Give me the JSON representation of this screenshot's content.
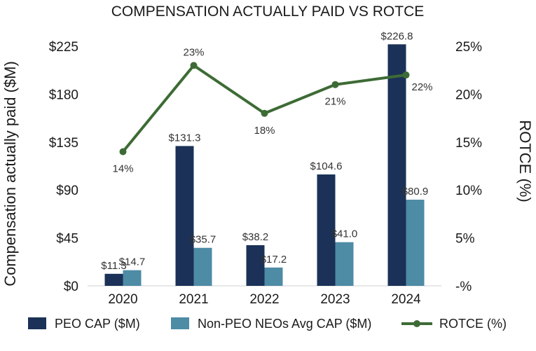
{
  "chart_data": {
    "type": "bar",
    "title": "COMPENSATION ACTUALLY PAID VS ROTCE",
    "categories": [
      "2020",
      "2021",
      "2022",
      "2023",
      "2024"
    ],
    "ylabel": "Compensation actually paid ($M)",
    "y2label": "ROTCE (%)",
    "ylim": [
      0,
      225
    ],
    "yticks": [
      0,
      45,
      90,
      135,
      180,
      225
    ],
    "ytick_labels": [
      "$0",
      "$45",
      "$90",
      "$135",
      "$180",
      "$225"
    ],
    "y2lim": [
      0,
      25
    ],
    "y2ticks": [
      0,
      5,
      10,
      15,
      20,
      25
    ],
    "y2tick_labels": [
      "-%",
      "5%",
      "10%",
      "15%",
      "20%",
      "25%"
    ],
    "series": [
      {
        "name": "PEO CAP ($M)",
        "kind": "bar",
        "color": "#1b3157",
        "values": [
          11.3,
          131.3,
          38.2,
          104.6,
          226.8
        ],
        "labels": [
          "$11.3",
          "$131.3",
          "$38.2",
          "$104.6",
          "$226.8"
        ]
      },
      {
        "name": "Non-PEO NEOs Avg CAP ($M)",
        "kind": "bar",
        "color": "#4e8ba5",
        "values": [
          14.7,
          35.7,
          17.2,
          41.0,
          80.9
        ],
        "labels": [
          "$14.7",
          "$35.7",
          "$17.2",
          "$41.0",
          "$80.9"
        ]
      },
      {
        "name": "ROTCE (%)",
        "kind": "line",
        "axis": "right",
        "color": "#3d6b35",
        "values": [
          14,
          23,
          18,
          21,
          22
        ],
        "labels": [
          "14%",
          "23%",
          "18%",
          "21%",
          "22%"
        ]
      }
    ],
    "legend": "bottom"
  }
}
